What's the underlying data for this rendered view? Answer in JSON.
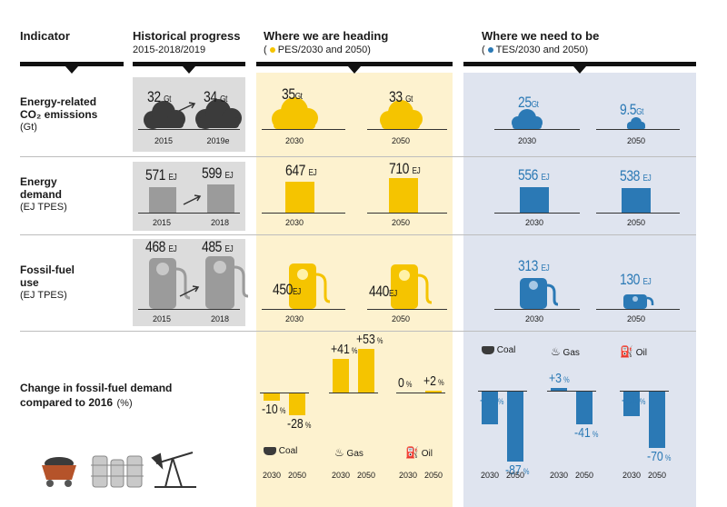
{
  "header": {
    "indicator": "Indicator",
    "historical": "Historical progress",
    "historical_sub": "2015-2018/2019",
    "heading": "Where we are heading",
    "heading_sub_open": "(",
    "heading_sub": "PES/2030 and 2050)",
    "need": "Where we need to be",
    "need_sub_open": "(",
    "need_sub": "TES/2030 and 2050)"
  },
  "rows": {
    "co2": {
      "label1": "Energy-related",
      "label2": "CO₂ emissions",
      "unit": "(Gt)",
      "hist": [
        {
          "year": "2015",
          "value": "32",
          "unit": "Gt"
        },
        {
          "year": "2019e",
          "value": "34",
          "unit": "Gt"
        }
      ],
      "pes": [
        {
          "year": "2030",
          "value": "35",
          "unit": "Gt"
        },
        {
          "year": "2050",
          "value": "33",
          "unit": "Gt"
        }
      ],
      "tes": [
        {
          "year": "2030",
          "value": "25",
          "unit": "Gt"
        },
        {
          "year": "2050",
          "value": "9.5",
          "unit": "Gt"
        }
      ]
    },
    "demand": {
      "label1": "Energy",
      "label2": "demand",
      "unit": "(EJ TPES)",
      "hist": [
        {
          "year": "2015",
          "value": "571",
          "unit": "EJ"
        },
        {
          "year": "2018",
          "value": "599",
          "unit": "EJ"
        }
      ],
      "pes": [
        {
          "year": "2030",
          "value": "647",
          "unit": "EJ"
        },
        {
          "year": "2050",
          "value": "710",
          "unit": "EJ"
        }
      ],
      "tes": [
        {
          "year": "2030",
          "value": "556",
          "unit": "EJ"
        },
        {
          "year": "2050",
          "value": "538",
          "unit": "EJ"
        }
      ]
    },
    "fossil": {
      "label1": "Fossil-fuel",
      "label2": "use",
      "unit": "(EJ TPES)",
      "hist": [
        {
          "year": "2015",
          "value": "468",
          "unit": "EJ"
        },
        {
          "year": "2018",
          "value": "485",
          "unit": "EJ"
        }
      ],
      "pes": [
        {
          "year": "2030",
          "value": "450",
          "unit": "EJ"
        },
        {
          "year": "2050",
          "value": "440",
          "unit": "EJ"
        }
      ],
      "tes": [
        {
          "year": "2030",
          "value": "313",
          "unit": "EJ"
        },
        {
          "year": "2050",
          "value": "130",
          "unit": "EJ"
        }
      ]
    },
    "change": {
      "label1": "Change in fossil-fuel demand",
      "label2": "compared to 2016",
      "unit": "(%)",
      "legend": {
        "coal": "Coal",
        "gas": "Gas",
        "oil": "Oil"
      },
      "years": [
        "2030",
        "2050"
      ],
      "pes": {
        "coal": [
          -10,
          -28
        ],
        "gas": [
          41,
          53
        ],
        "oil": [
          0,
          2
        ]
      },
      "tes": {
        "coal": [
          -41,
          -87
        ],
        "gas": [
          3,
          -41
        ],
        "oil": [
          -31,
          -70
        ]
      },
      "pes_labels": {
        "coal": [
          "-10",
          "-28"
        ],
        "gas": [
          "+41",
          "+53"
        ],
        "oil": [
          "0",
          "+2"
        ]
      },
      "tes_labels": {
        "coal": [
          "-41",
          "-87"
        ],
        "gas": [
          "+3",
          "-41"
        ],
        "oil": [
          "-31",
          "-70"
        ]
      },
      "pct": "%"
    }
  },
  "colors": {
    "yellow": "#f5c400",
    "blue": "#2b79b5",
    "grey": "#9b9b9b",
    "dark": "#3b3b3b"
  }
}
